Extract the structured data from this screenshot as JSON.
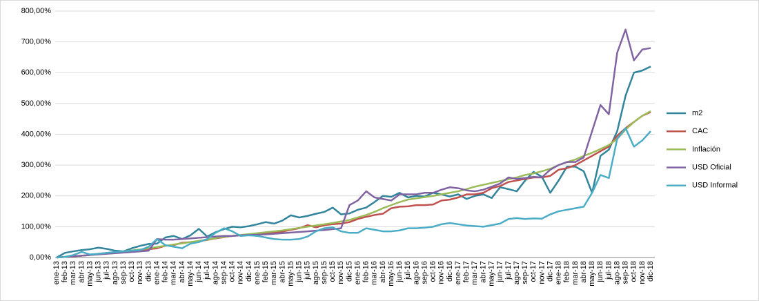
{
  "chart_data": {
    "type": "line",
    "categories": [
      "ene-13",
      "feb-13",
      "mar-13",
      "abr-13",
      "may-13",
      "jun-13",
      "jul-13",
      "ago-13",
      "sep-13",
      "oct-13",
      "nov-13",
      "dic-13",
      "ene-14",
      "feb-14",
      "mar-14",
      "abr-14",
      "may-14",
      "jun-14",
      "jul-14",
      "ago-14",
      "sep-14",
      "oct-14",
      "nov-14",
      "dic-14",
      "ene-15",
      "feb-15",
      "mar-15",
      "abr-15",
      "may-15",
      "jun-15",
      "jul-15",
      "ago-15",
      "sep-15",
      "oct-15",
      "nov-15",
      "dic-15",
      "ene-16",
      "feb-16",
      "mar-16",
      "abr-16",
      "may-16",
      "jun-16",
      "jul-16",
      "ago-16",
      "sep-16",
      "oct-16",
      "nov-16",
      "dic-16",
      "ene-17",
      "feb-17",
      "mar-17",
      "abr-17",
      "may-17",
      "jun-17",
      "jul-17",
      "ago-17",
      "sep-17",
      "oct-17",
      "nov-17",
      "dic-17",
      "ene-18",
      "feb-18",
      "mar-18",
      "abr-18",
      "may-18",
      "jun-18",
      "jul-18",
      "ago-18",
      "sep-18",
      "oct-18",
      "nov-18",
      "dic-18"
    ],
    "series": [
      {
        "name": "m2",
        "color": "#31849b",
        "values": [
          0,
          15,
          20,
          24,
          27,
          32,
          28,
          22,
          20,
          30,
          38,
          44,
          45,
          65,
          70,
          60,
          72,
          93,
          68,
          82,
          92,
          100,
          98,
          102,
          108,
          115,
          110,
          120,
          137,
          130,
          135,
          142,
          148,
          162,
          140,
          143,
          155,
          162,
          180,
          200,
          197,
          210,
          195,
          200,
          198,
          210,
          205,
          198,
          205,
          190,
          200,
          205,
          193,
          228,
          222,
          215,
          250,
          278,
          262,
          210,
          250,
          295,
          295,
          280,
          210,
          330,
          350,
          410,
          525,
          600,
          607,
          620
        ]
      },
      {
        "name": "CAC",
        "color": "#c0504d",
        "values": [
          0,
          2,
          4,
          6,
          8,
          12,
          15,
          16,
          18,
          20,
          23,
          27,
          30,
          38,
          40,
          48,
          50,
          53,
          57,
          62,
          66,
          70,
          72,
          74,
          76,
          78,
          80,
          84,
          90,
          95,
          105,
          98,
          105,
          108,
          110,
          115,
          125,
          132,
          138,
          142,
          160,
          165,
          166,
          170,
          170,
          172,
          185,
          188,
          195,
          205,
          205,
          210,
          225,
          232,
          245,
          250,
          255,
          260,
          260,
          265,
          285,
          290,
          300,
          315,
          330,
          345,
          360,
          395,
          420,
          440,
          460,
          472
        ]
      },
      {
        "name": "Inflación",
        "color": "#9bbb59",
        "values": [
          0,
          2,
          4,
          6,
          8,
          11,
          14,
          17,
          20,
          23,
          26,
          30,
          34,
          38,
          42,
          46,
          50,
          54,
          58,
          63,
          67,
          70,
          73,
          76,
          79,
          82,
          85,
          88,
          92,
          96,
          100,
          104,
          108,
          112,
          117,
          122,
          130,
          138,
          148,
          160,
          170,
          180,
          188,
          192,
          196,
          200,
          205,
          210,
          215,
          222,
          230,
          236,
          242,
          248,
          254,
          260,
          268,
          273,
          280,
          288,
          300,
          310,
          318,
          330,
          340,
          352,
          365,
          385,
          415,
          440,
          460,
          475
        ]
      },
      {
        "name": "USD Oficial",
        "color": "#8064a2",
        "values": [
          0,
          2,
          4,
          6,
          8,
          10,
          12,
          14,
          16,
          18,
          20,
          22,
          60,
          58,
          58,
          60,
          62,
          64,
          66,
          68,
          70,
          70,
          72,
          73,
          74,
          75,
          77,
          79,
          81,
          83,
          85,
          87,
          89,
          92,
          95,
          170,
          185,
          215,
          195,
          190,
          185,
          205,
          205,
          205,
          210,
          210,
          220,
          228,
          225,
          218,
          215,
          220,
          230,
          240,
          260,
          255,
          258,
          262,
          260,
          285,
          300,
          310,
          310,
          325,
          410,
          495,
          465,
          665,
          740,
          640,
          675,
          680
        ]
      },
      {
        "name": "USD Informal",
        "color": "#4bacc6",
        "values": [
          0,
          2,
          8,
          18,
          10,
          12,
          15,
          18,
          20,
          22,
          24,
          35,
          60,
          40,
          35,
          30,
          45,
          50,
          60,
          80,
          95,
          85,
          70,
          72,
          70,
          65,
          60,
          58,
          58,
          60,
          68,
          85,
          95,
          98,
          85,
          80,
          80,
          95,
          90,
          85,
          85,
          88,
          95,
          95,
          97,
          100,
          108,
          112,
          108,
          104,
          102,
          100,
          105,
          110,
          125,
          128,
          125,
          127,
          126,
          140,
          150,
          155,
          160,
          165,
          210,
          268,
          258,
          385,
          420,
          360,
          380,
          410
        ]
      }
    ],
    "ylim": [
      0,
      800
    ],
    "yticks": [
      {
        "value": 0,
        "label": "0,00%"
      },
      {
        "value": 100,
        "label": "100,00%"
      },
      {
        "value": 200,
        "label": "200,00%"
      },
      {
        "value": 300,
        "label": "300,00%"
      },
      {
        "value": 400,
        "label": "400,00%"
      },
      {
        "value": 500,
        "label": "500,00%"
      },
      {
        "value": 600,
        "label": "600,00%"
      },
      {
        "value": 700,
        "label": "700,00%"
      },
      {
        "value": 800,
        "label": "800,00%"
      }
    ],
    "grid": true
  }
}
